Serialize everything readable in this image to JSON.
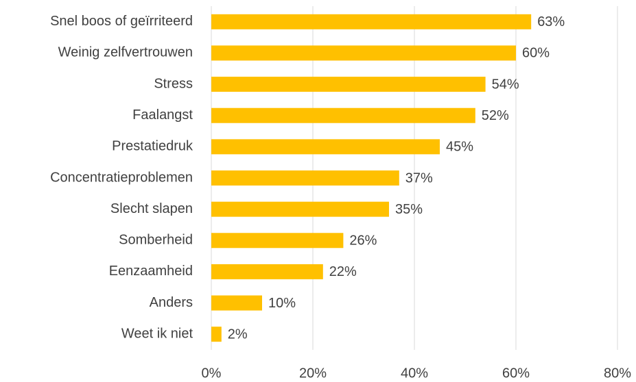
{
  "chart_data": {
    "type": "bar",
    "orientation": "horizontal",
    "categories": [
      "Snel boos of geïrriteerd",
      "Weinig zelfvertrouwen",
      "Stress",
      "Faalangst",
      "Prestatiedruk",
      "Concentratieproblemen",
      "Slecht slapen",
      "Somberheid",
      "Eenzaamheid",
      "Anders",
      "Weet ik niet"
    ],
    "values": [
      63,
      60,
      54,
      52,
      45,
      37,
      35,
      26,
      22,
      10,
      2
    ],
    "value_labels": [
      "63%",
      "60%",
      "54%",
      "52%",
      "45%",
      "37%",
      "35%",
      "26%",
      "22%",
      "10%",
      "2%"
    ],
    "color": "#ffc000",
    "xlim": [
      0,
      80
    ],
    "xticks": [
      {
        "value": 0,
        "label": "0%"
      },
      {
        "value": 20,
        "label": "20%"
      },
      {
        "value": 40,
        "label": "40%"
      },
      {
        "value": 60,
        "label": "60%"
      },
      {
        "value": 80,
        "label": "80%"
      }
    ],
    "grid": true
  }
}
